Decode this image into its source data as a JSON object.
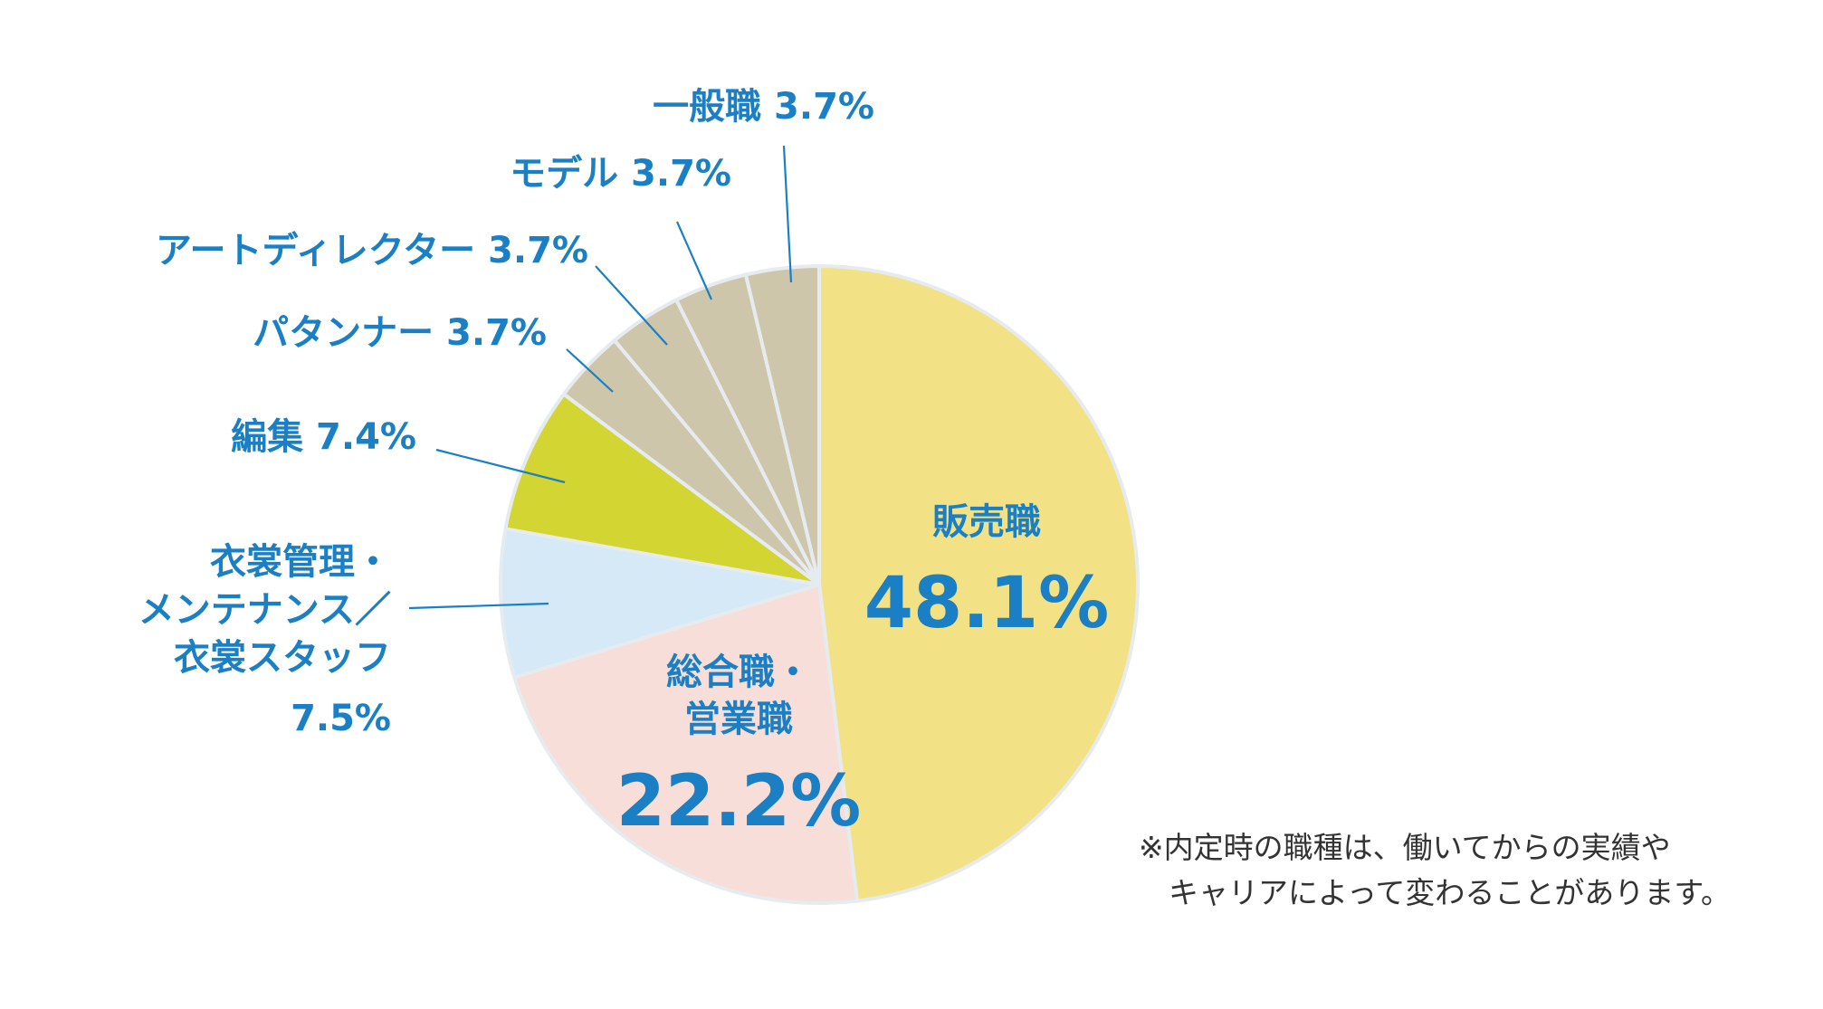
{
  "chart_data": {
    "type": "pie",
    "title": "",
    "start": "12 o'clock, clockwise",
    "slices": [
      {
        "id": "hanbai",
        "name": "販売職",
        "lines": [
          "販売職"
        ],
        "value_label": "48.1%",
        "value": 48.1,
        "color": "#f3e285",
        "label_pos": "inside"
      },
      {
        "id": "sogo",
        "name": "総合職・営業職",
        "lines": [
          "総合職・",
          "営業職"
        ],
        "value_label": "22.2%",
        "value": 22.2,
        "color": "#f8ded8",
        "label_pos": "inside"
      },
      {
        "id": "isho",
        "name": "衣裳管理・メンテナンス／衣裳スタッフ",
        "lines": [
          "衣裳管理・",
          "メンテナンス／",
          "衣裳スタッフ"
        ],
        "value_label": "7.5%",
        "value": 7.5,
        "color": "#d5e9f6",
        "label_pos": "outside"
      },
      {
        "id": "henshu",
        "name": "編集",
        "lines": [
          "編集"
        ],
        "value_label": "7.4%",
        "value": 7.4,
        "color": "#d3d632",
        "label_pos": "outside"
      },
      {
        "id": "patanner",
        "name": "パタンナー",
        "lines": [
          "パタンナー"
        ],
        "value_label": "3.7%",
        "value": 3.7,
        "color": "#cec6aa",
        "label_pos": "outside"
      },
      {
        "id": "art",
        "name": "アートディレクター",
        "lines": [
          "アートディレクター"
        ],
        "value_label": "3.7%",
        "value": 3.7,
        "color": "#cec6aa",
        "label_pos": "outside"
      },
      {
        "id": "model",
        "name": "モデル",
        "lines": [
          "モデル"
        ],
        "value_label": "3.7%",
        "value": 3.7,
        "color": "#cec6aa",
        "label_pos": "outside"
      },
      {
        "id": "ippan",
        "name": "一般職",
        "lines": [
          "一般職"
        ],
        "value_label": "3.7%",
        "value": 3.7,
        "color": "#cec6aa",
        "label_pos": "outside"
      }
    ]
  },
  "colors": {
    "label": "#1a7fc4",
    "slice_border": "#e6ebf0",
    "footnote": "#333333"
  },
  "footnote": {
    "line1": "※内定時の職種は、働いてからの実績や",
    "line2": "キャリアによって変わることがあります。"
  }
}
